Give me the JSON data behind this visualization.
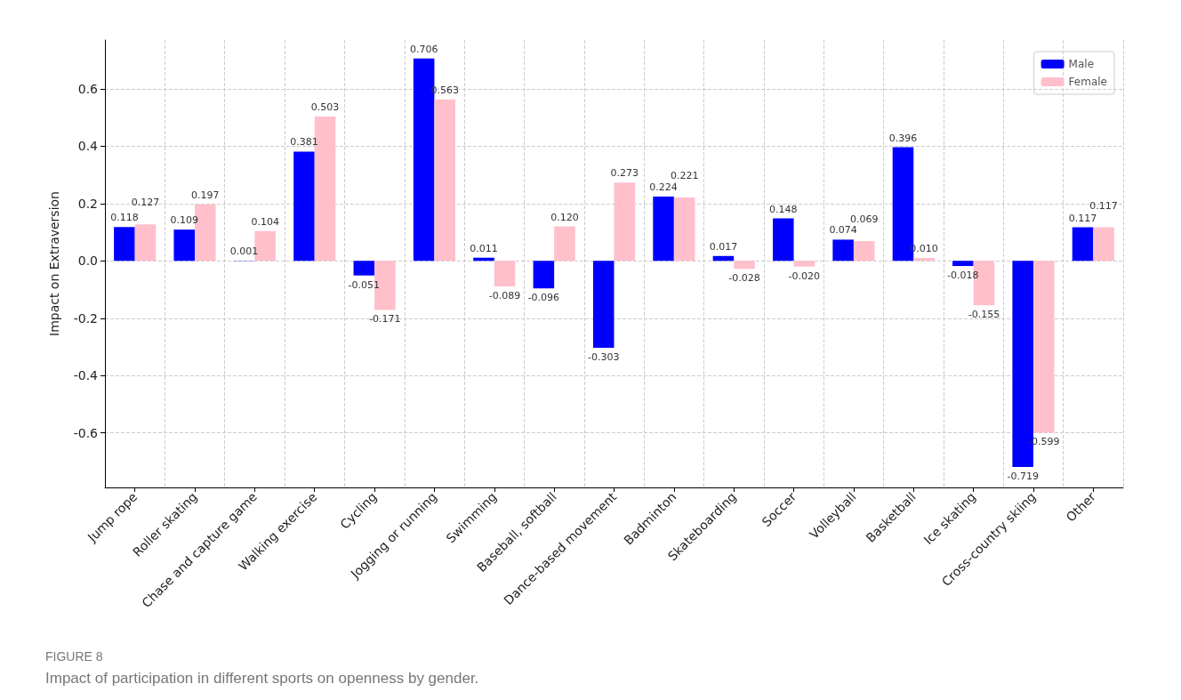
{
  "chart_data": {
    "type": "bar",
    "title": "FIGURE 8",
    "subtitle": "Impact of participation in different sports on openness by gender.",
    "ylabel": "Impact on Extraversion",
    "categories": [
      "Jump rope",
      "Roller skating",
      "Chase and capture game",
      "Walking exercise",
      "Cycling",
      "Jogging or running",
      "Swimming",
      "Baseball, softball",
      "Dance-based movement",
      "Badminton",
      "Skateboarding",
      "Soccer",
      "Volleyball",
      "Basketball",
      "Ice skating",
      "Cross-country skiing",
      "Other"
    ],
    "series": [
      {
        "name": "Male",
        "color": "#0000ff",
        "values": [
          0.118,
          0.109,
          0.001,
          0.381,
          -0.051,
          0.706,
          0.011,
          -0.096,
          -0.303,
          0.224,
          0.017,
          0.148,
          0.074,
          0.396,
          -0.018,
          -0.719,
          0.117
        ],
        "value_labels": [
          "0.118",
          "0.109",
          "0.001",
          "0.381",
          "-0.051",
          "0.706",
          "0.011",
          "-0.096",
          "-0.303",
          "0.224",
          "0.017",
          "0.148",
          "0.074",
          "0.396",
          "-0.018",
          "-0.719",
          "0.117"
        ]
      },
      {
        "name": "Female",
        "color": "#ffc0cb",
        "values": [
          0.127,
          0.197,
          0.104,
          0.503,
          -0.171,
          0.563,
          -0.089,
          0.12,
          0.273,
          0.221,
          -0.028,
          -0.02,
          0.069,
          0.01,
          -0.155,
          -0.599,
          0.117
        ],
        "value_labels": [
          "0.127",
          "0.197",
          "0.104",
          "0.503",
          "-0.171",
          "0.563",
          "-0.089",
          "0.120",
          "0.273",
          "0.221",
          "-0.028",
          "-0.020",
          "0.069",
          "0.010",
          "-0.155",
          "-0.599",
          "0.117"
        ]
      }
    ],
    "ylim": [
      -0.79,
      0.77
    ],
    "yticks": [
      -0.6,
      -0.4,
      -0.2,
      {
        "value": 0,
        "label": "0.0"
      },
      0.2,
      0.4,
      0.6
    ],
    "grid": true,
    "legend": "top right"
  }
}
